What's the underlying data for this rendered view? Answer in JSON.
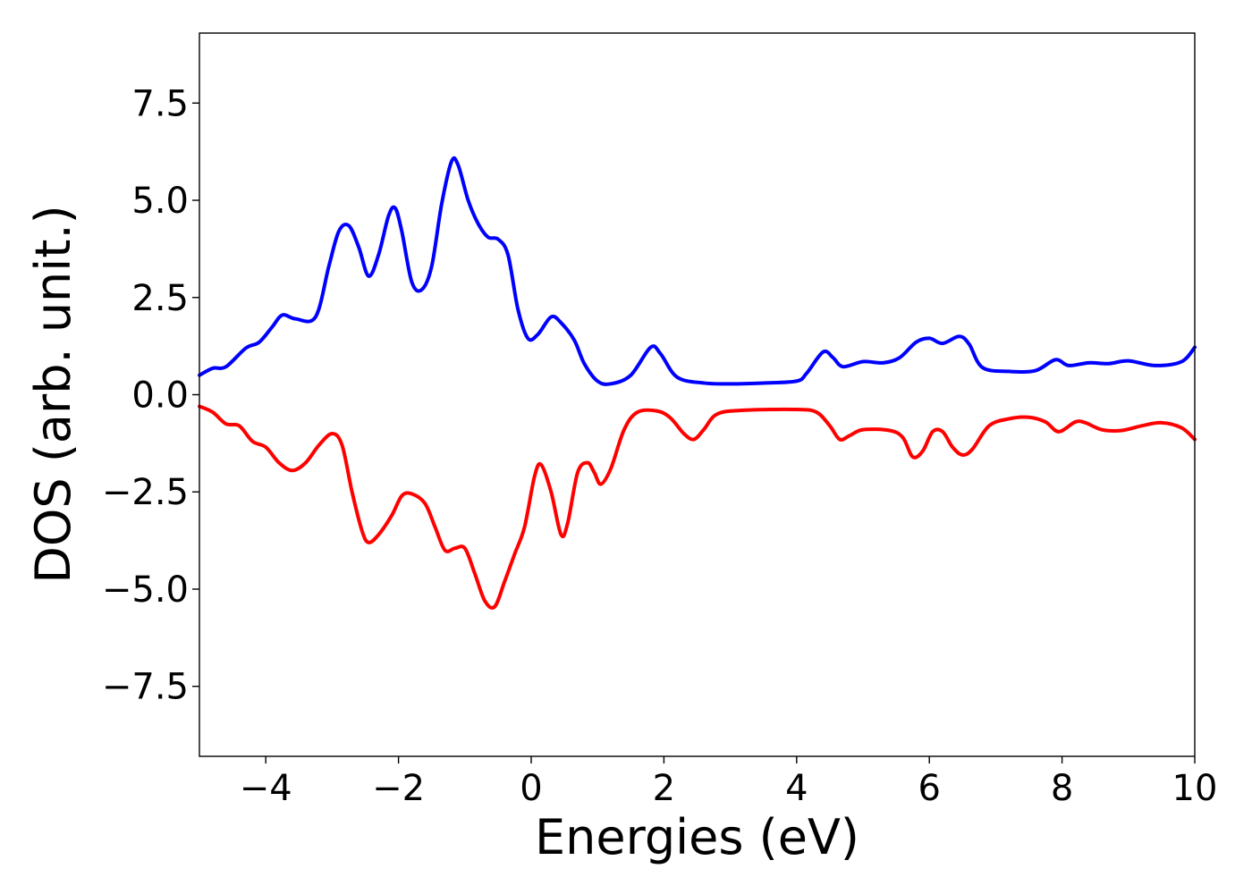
{
  "chart_data": {
    "type": "line",
    "title": "",
    "xlabel": "Energies (eV)",
    "ylabel": "DOS (arb. unit.)",
    "xlim": [
      -5,
      10
    ],
    "ylim": [
      -9.3,
      9.3
    ],
    "grid": false,
    "legend": "none",
    "xticks": [
      -4,
      -2,
      0,
      2,
      4,
      6,
      8,
      10
    ],
    "xtick_labels": [
      "−4",
      "−2",
      "0",
      "2",
      "4",
      "6",
      "8",
      "10"
    ],
    "yticks": [
      7.5,
      5.0,
      2.5,
      0.0,
      -2.5,
      -5.0,
      -7.5
    ],
    "ytick_labels": [
      "7.5",
      "5.0",
      "2.5",
      "0.0",
      "−2.5",
      "−5.0",
      "−7.5"
    ],
    "series": [
      {
        "color": "#0000ff",
        "points": [
          [
            -5.0,
            0.5
          ],
          [
            -4.8,
            0.68
          ],
          [
            -4.6,
            0.72
          ],
          [
            -4.3,
            1.2
          ],
          [
            -4.1,
            1.35
          ],
          [
            -3.9,
            1.75
          ],
          [
            -3.75,
            2.05
          ],
          [
            -3.55,
            1.95
          ],
          [
            -3.25,
            2.0
          ],
          [
            -3.05,
            3.3
          ],
          [
            -2.9,
            4.2
          ],
          [
            -2.75,
            4.35
          ],
          [
            -2.6,
            3.8
          ],
          [
            -2.45,
            3.05
          ],
          [
            -2.3,
            3.6
          ],
          [
            -2.15,
            4.6
          ],
          [
            -2.05,
            4.8
          ],
          [
            -1.95,
            4.2
          ],
          [
            -1.8,
            2.9
          ],
          [
            -1.65,
            2.7
          ],
          [
            -1.5,
            3.3
          ],
          [
            -1.35,
            4.9
          ],
          [
            -1.2,
            6.0
          ],
          [
            -1.1,
            5.9
          ],
          [
            -0.95,
            5.0
          ],
          [
            -0.8,
            4.4
          ],
          [
            -0.65,
            4.05
          ],
          [
            -0.5,
            4.0
          ],
          [
            -0.35,
            3.6
          ],
          [
            -0.2,
            2.2
          ],
          [
            -0.05,
            1.45
          ],
          [
            0.1,
            1.55
          ],
          [
            0.3,
            2.0
          ],
          [
            0.45,
            1.85
          ],
          [
            0.65,
            1.4
          ],
          [
            0.8,
            0.8
          ],
          [
            1.0,
            0.35
          ],
          [
            1.2,
            0.28
          ],
          [
            1.5,
            0.5
          ],
          [
            1.8,
            1.22
          ],
          [
            1.95,
            1.05
          ],
          [
            2.2,
            0.45
          ],
          [
            2.6,
            0.3
          ],
          [
            3.0,
            0.28
          ],
          [
            3.5,
            0.3
          ],
          [
            4.0,
            0.35
          ],
          [
            4.15,
            0.55
          ],
          [
            4.4,
            1.1
          ],
          [
            4.55,
            0.95
          ],
          [
            4.7,
            0.72
          ],
          [
            5.0,
            0.85
          ],
          [
            5.3,
            0.82
          ],
          [
            5.55,
            0.95
          ],
          [
            5.8,
            1.35
          ],
          [
            6.0,
            1.45
          ],
          [
            6.2,
            1.32
          ],
          [
            6.45,
            1.5
          ],
          [
            6.6,
            1.3
          ],
          [
            6.8,
            0.7
          ],
          [
            7.2,
            0.6
          ],
          [
            7.6,
            0.62
          ],
          [
            7.9,
            0.9
          ],
          [
            8.1,
            0.75
          ],
          [
            8.4,
            0.82
          ],
          [
            8.7,
            0.8
          ],
          [
            9.0,
            0.87
          ],
          [
            9.4,
            0.75
          ],
          [
            9.8,
            0.85
          ],
          [
            10.0,
            1.22
          ]
        ]
      },
      {
        "color": "#ff0000",
        "points": [
          [
            -5.0,
            -0.3
          ],
          [
            -4.8,
            -0.45
          ],
          [
            -4.6,
            -0.75
          ],
          [
            -4.4,
            -0.8
          ],
          [
            -4.2,
            -1.2
          ],
          [
            -4.0,
            -1.35
          ],
          [
            -3.8,
            -1.75
          ],
          [
            -3.6,
            -1.95
          ],
          [
            -3.4,
            -1.75
          ],
          [
            -3.2,
            -1.3
          ],
          [
            -3.0,
            -1.0
          ],
          [
            -2.85,
            -1.3
          ],
          [
            -2.7,
            -2.5
          ],
          [
            -2.55,
            -3.5
          ],
          [
            -2.45,
            -3.8
          ],
          [
            -2.3,
            -3.6
          ],
          [
            -2.1,
            -3.1
          ],
          [
            -1.95,
            -2.6
          ],
          [
            -1.8,
            -2.55
          ],
          [
            -1.6,
            -2.8
          ],
          [
            -1.45,
            -3.4
          ],
          [
            -1.3,
            -4.0
          ],
          [
            -1.15,
            -3.95
          ],
          [
            -1.0,
            -3.95
          ],
          [
            -0.85,
            -4.6
          ],
          [
            -0.7,
            -5.3
          ],
          [
            -0.55,
            -5.45
          ],
          [
            -0.4,
            -4.8
          ],
          [
            -0.25,
            -4.1
          ],
          [
            -0.1,
            -3.4
          ],
          [
            0.05,
            -2.1
          ],
          [
            0.15,
            -1.8
          ],
          [
            0.3,
            -2.5
          ],
          [
            0.45,
            -3.6
          ],
          [
            0.55,
            -3.3
          ],
          [
            0.7,
            -2.0
          ],
          [
            0.85,
            -1.75
          ],
          [
            0.95,
            -2.0
          ],
          [
            1.05,
            -2.3
          ],
          [
            1.2,
            -1.9
          ],
          [
            1.4,
            -0.9
          ],
          [
            1.6,
            -0.45
          ],
          [
            1.9,
            -0.42
          ],
          [
            2.1,
            -0.6
          ],
          [
            2.3,
            -1.0
          ],
          [
            2.45,
            -1.15
          ],
          [
            2.6,
            -0.9
          ],
          [
            2.8,
            -0.5
          ],
          [
            3.2,
            -0.4
          ],
          [
            4.0,
            -0.38
          ],
          [
            4.3,
            -0.45
          ],
          [
            4.5,
            -0.8
          ],
          [
            4.65,
            -1.15
          ],
          [
            4.8,
            -1.05
          ],
          [
            5.0,
            -0.9
          ],
          [
            5.4,
            -0.92
          ],
          [
            5.6,
            -1.1
          ],
          [
            5.75,
            -1.6
          ],
          [
            5.9,
            -1.45
          ],
          [
            6.05,
            -0.95
          ],
          [
            6.2,
            -0.95
          ],
          [
            6.35,
            -1.35
          ],
          [
            6.5,
            -1.55
          ],
          [
            6.65,
            -1.4
          ],
          [
            6.9,
            -0.8
          ],
          [
            7.2,
            -0.62
          ],
          [
            7.5,
            -0.58
          ],
          [
            7.75,
            -0.7
          ],
          [
            7.95,
            -0.95
          ],
          [
            8.2,
            -0.7
          ],
          [
            8.35,
            -0.72
          ],
          [
            8.6,
            -0.9
          ],
          [
            8.9,
            -0.92
          ],
          [
            9.2,
            -0.8
          ],
          [
            9.5,
            -0.72
          ],
          [
            9.8,
            -0.85
          ],
          [
            10.0,
            -1.15
          ]
        ]
      }
    ]
  }
}
